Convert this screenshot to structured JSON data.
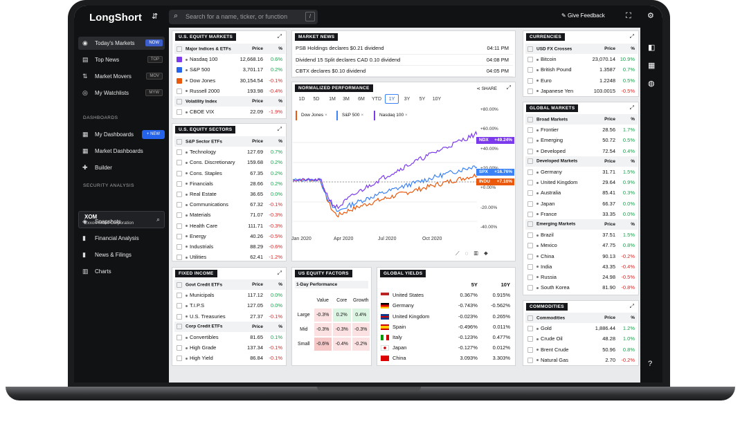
{
  "app": {
    "title": "LongShort",
    "search_placeholder": "Search for a name, ticker, or function",
    "search_shortcut": "/",
    "give_feedback": "Give Feedback"
  },
  "sidebar": {
    "items": [
      {
        "label": "Today's Markets",
        "key": "NOW"
      },
      {
        "label": "Top News",
        "key": "TOP"
      },
      {
        "label": "Market Movers",
        "key": "MOV"
      },
      {
        "label": "My Watchlists",
        "key": "MYW"
      }
    ],
    "dashboards_header": "DASHBOARDS",
    "new_label": "+ NEW",
    "dashboards": [
      "My Dashboards",
      "Market Dashboards",
      "Builder"
    ],
    "security_header": "SECURITY ANALYSIS",
    "security": {
      "ticker": "XOM",
      "name": "Exxon Mobil Corporation"
    },
    "security_items": [
      "Snapshots",
      "Financial Analysis",
      "News & Filings",
      "Charts"
    ]
  },
  "equity_markets": {
    "title": "U.S. EQUITY MARKETS",
    "header": [
      "Major Indices & ETFs",
      "Price",
      "%"
    ],
    "rows": [
      {
        "name": "Nasdaq 100",
        "price": "12,668.16",
        "pct": "0.6%",
        "dir": "pos",
        "check": "#7c3aed"
      },
      {
        "name": "S&P 500",
        "price": "3,701.17",
        "pct": "0.2%",
        "dir": "pos",
        "check": "#2563eb"
      },
      {
        "name": "Dow Jones",
        "price": "30,154.54",
        "pct": "-0.1%",
        "dir": "neg",
        "check": "#ea580c"
      },
      {
        "name": "Russell 2000",
        "price": "193.98",
        "pct": "-0.4%",
        "dir": "neg",
        "check": ""
      }
    ],
    "vol_header": [
      "Volatility Index",
      "Price",
      "%"
    ],
    "vol_rows": [
      {
        "name": "CBOE VIX",
        "price": "22.09",
        "pct": "-1.9%",
        "dir": "neg"
      }
    ]
  },
  "market_news": {
    "title": "MARKET NEWS",
    "items": [
      {
        "text": "PSB Holdings declares $0.21 dividend",
        "time": "04:11 PM"
      },
      {
        "text": "Dividend 15 Split declares CAD 0.10 dividend",
        "time": "04:08 PM"
      },
      {
        "text": "CBTX declares $0.10 dividend",
        "time": "04:05 PM"
      }
    ]
  },
  "currencies": {
    "title": "CURRENCIES",
    "header": [
      "USD FX Crosses",
      "Price",
      "%"
    ],
    "rows": [
      {
        "name": "Bitcoin",
        "price": "23,070.14",
        "pct": "10.9%",
        "dir": "pos"
      },
      {
        "name": "British Pound",
        "price": "1.3587",
        "pct": "0.7%",
        "dir": "pos"
      },
      {
        "name": "Euro",
        "price": "1.2248",
        "pct": "0.5%",
        "dir": "pos"
      },
      {
        "name": "Japanese Yen",
        "price": "103.0015",
        "pct": "-0.5%",
        "dir": "neg"
      }
    ]
  },
  "sectors": {
    "title": "U.S. EQUITY SECTORS",
    "header": [
      "S&P Sector ETFs",
      "Price",
      "%"
    ],
    "rows": [
      {
        "name": "Technology",
        "price": "127.69",
        "pct": "0.7%",
        "dir": "pos"
      },
      {
        "name": "Cons. Discretionary",
        "price": "159.68",
        "pct": "0.2%",
        "dir": "pos"
      },
      {
        "name": "Cons. Staples",
        "price": "67.35",
        "pct": "0.2%",
        "dir": "pos"
      },
      {
        "name": "Financials",
        "price": "28.66",
        "pct": "0.2%",
        "dir": "pos"
      },
      {
        "name": "Real Estate",
        "price": "36.65",
        "pct": "0.0%",
        "dir": "pos"
      },
      {
        "name": "Communications",
        "price": "67.32",
        "pct": "-0.1%",
        "dir": "neg"
      },
      {
        "name": "Materials",
        "price": "71.07",
        "pct": "-0.3%",
        "dir": "neg"
      },
      {
        "name": "Health Care",
        "price": "111.71",
        "pct": "-0.3%",
        "dir": "neg"
      },
      {
        "name": "Energy",
        "price": "40.26",
        "pct": "-0.5%",
        "dir": "neg"
      },
      {
        "name": "Industrials",
        "price": "88.29",
        "pct": "-0.6%",
        "dir": "neg"
      },
      {
        "name": "Utilities",
        "price": "62.41",
        "pct": "-1.2%",
        "dir": "neg"
      }
    ]
  },
  "perf_chart": {
    "title": "NORMALIZED PERFORMANCE",
    "share": "SHARE",
    "ranges": [
      "1D",
      "5D",
      "1M",
      "3M",
      "6M",
      "YTD",
      "1Y",
      "3Y",
      "5Y",
      "10Y"
    ],
    "selected": "1Y",
    "chips": [
      {
        "label": "Dow Jones",
        "color": "#ea580c"
      },
      {
        "label": "S&P 500",
        "color": "#3b82f6"
      },
      {
        "label": "Nasdaq 100",
        "color": "#7c3aed"
      }
    ],
    "tags": [
      {
        "label": "NDX",
        "value": "+49.24%",
        "color": "#7c3aed"
      },
      {
        "label": "SPX",
        "value": "+16.76%",
        "color": "#3b82f6"
      },
      {
        "label": "INDU",
        "value": "+7.16%",
        "color": "#ea580c"
      }
    ],
    "yticks": [
      "+80.00%",
      "+60.00%",
      "+40.00%",
      "+20.00%",
      "+0.00%",
      "-20.00%",
      "-40.00%"
    ],
    "xticks": [
      "Jan 2020",
      "Apr 2020",
      "Jul 2020",
      "Oct 2020"
    ]
  },
  "global_markets": {
    "title": "GLOBAL MARKETS",
    "groups": [
      {
        "header": [
          "Broad Markets",
          "Price",
          "%"
        ],
        "rows": [
          {
            "name": "Frontier",
            "price": "28.56",
            "pct": "1.7%",
            "dir": "pos"
          },
          {
            "name": "Emerging",
            "price": "50.72",
            "pct": "0.5%",
            "dir": "pos"
          },
          {
            "name": "Developed",
            "price": "72.54",
            "pct": "0.4%",
            "dir": "pos"
          }
        ]
      },
      {
        "header": [
          "Developed Markets",
          "Price",
          "%"
        ],
        "rows": [
          {
            "name": "Germany",
            "price": "31.71",
            "pct": "1.5%",
            "dir": "pos"
          },
          {
            "name": "United Kingdom",
            "price": "29.64",
            "pct": "0.9%",
            "dir": "pos"
          },
          {
            "name": "Australia",
            "price": "85.41",
            "pct": "0.3%",
            "dir": "pos"
          },
          {
            "name": "Japan",
            "price": "66.37",
            "pct": "0.0%",
            "dir": "pos"
          },
          {
            "name": "France",
            "price": "33.35",
            "pct": "0.0%",
            "dir": "pos"
          }
        ]
      },
      {
        "header": [
          "Emerging Markets",
          "Price",
          "%"
        ],
        "rows": [
          {
            "name": "Brazil",
            "price": "37.51",
            "pct": "1.5%",
            "dir": "pos"
          },
          {
            "name": "Mexico",
            "price": "47.75",
            "pct": "0.8%",
            "dir": "pos"
          },
          {
            "name": "China",
            "price": "90.13",
            "pct": "-0.2%",
            "dir": "neg"
          },
          {
            "name": "India",
            "price": "43.35",
            "pct": "-0.4%",
            "dir": "neg"
          },
          {
            "name": "Russia",
            "price": "24.98",
            "pct": "-0.5%",
            "dir": "neg"
          },
          {
            "name": "South Korea",
            "price": "81.90",
            "pct": "-0.8%",
            "dir": "neg"
          }
        ]
      }
    ]
  },
  "fixed_income": {
    "title": "FIXED INCOME",
    "groups": [
      {
        "header": [
          "Govt Credit ETFs",
          "Price",
          "%"
        ],
        "rows": [
          {
            "name": "Municipals",
            "price": "117.12",
            "pct": "0.0%",
            "dir": "pos"
          },
          {
            "name": "T.I.P.S",
            "price": "127.05",
            "pct": "0.0%",
            "dir": "pos"
          },
          {
            "name": "U.S. Treasuries",
            "price": "27.37",
            "pct": "-0.1%",
            "dir": "neg"
          }
        ]
      },
      {
        "header": [
          "Corp Credit ETFs",
          "Price",
          "%"
        ],
        "rows": [
          {
            "name": "Convertibles",
            "price": "81.65",
            "pct": "0.1%",
            "dir": "pos"
          },
          {
            "name": "High Grade",
            "price": "137.34",
            "pct": "-0.1%",
            "dir": "neg"
          },
          {
            "name": "High Yield",
            "price": "86.84",
            "pct": "-0.1%",
            "dir": "neg"
          }
        ]
      }
    ]
  },
  "factors": {
    "title": "US EQUITY FACTORS",
    "subtitle": "1-Day Performance",
    "cols": [
      "Value",
      "Core",
      "Growth"
    ],
    "rows": [
      {
        "label": "Large",
        "vals": [
          "-0.3%",
          "0.2%",
          "0.4%"
        ]
      },
      {
        "label": "Mid",
        "vals": [
          "-0.3%",
          "-0.3%",
          "-0.3%"
        ]
      },
      {
        "label": "Small",
        "vals": [
          "-0.6%",
          "-0.4%",
          "-0.2%"
        ]
      }
    ]
  },
  "yields": {
    "title": "GLOBAL YIELDS",
    "cols": [
      "5Y",
      "10Y"
    ],
    "rows": [
      {
        "name": "United States",
        "y5": "0.367%",
        "y10": "0.915%",
        "flag": "us"
      },
      {
        "name": "Germany",
        "y5": "-0.743%",
        "y10": "-0.562%",
        "flag": "de"
      },
      {
        "name": "United Kingdom",
        "y5": "-0.023%",
        "y10": "0.265%",
        "flag": "uk"
      },
      {
        "name": "Spain",
        "y5": "-0.496%",
        "y10": "0.011%",
        "flag": "es"
      },
      {
        "name": "Italy",
        "y5": "-0.123%",
        "y10": "0.477%",
        "flag": "it"
      },
      {
        "name": "Japan",
        "y5": "-0.127%",
        "y10": "0.012%",
        "flag": "jp"
      },
      {
        "name": "China",
        "y5": "3.093%",
        "y10": "3.303%",
        "flag": "cn"
      }
    ]
  },
  "commodities": {
    "title": "COMMODITIES",
    "header": [
      "Commodities",
      "Price",
      "%"
    ],
    "rows": [
      {
        "name": "Gold",
        "price": "1,886.44",
        "pct": "1.2%",
        "dir": "pos"
      },
      {
        "name": "Crude Oil",
        "price": "48.28",
        "pct": "1.0%",
        "dir": "pos"
      },
      {
        "name": "Brent Crude",
        "price": "50.96",
        "pct": "0.8%",
        "dir": "pos"
      },
      {
        "name": "Natural Gas",
        "price": "2.70",
        "pct": "-0.2%",
        "dir": "neg"
      }
    ]
  }
}
